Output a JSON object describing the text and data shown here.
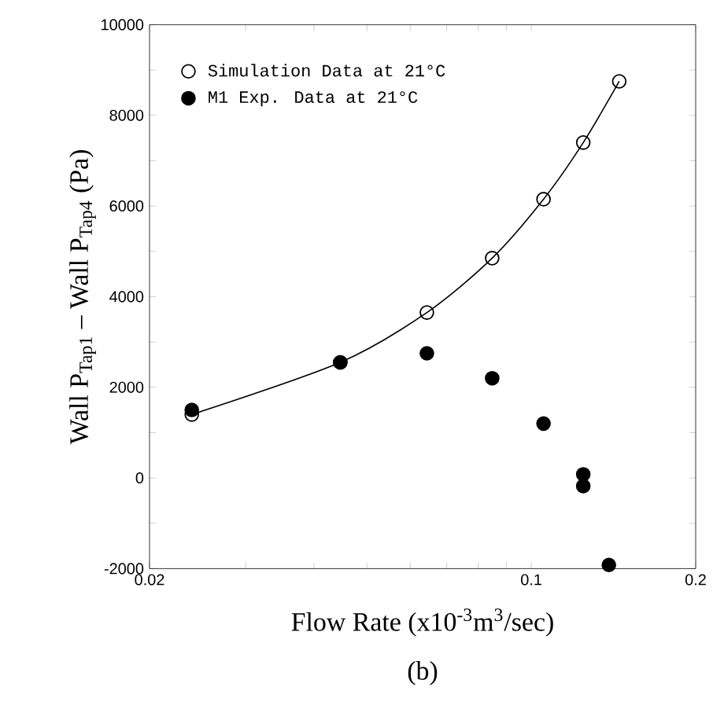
{
  "chart_data": {
    "type": "scatter",
    "xlabel": "Flow Rate (x10$^{-3}$m$^{3}$/sec)",
    "ylabel": "Wall P$_{Tap1}$ – Wall P$_{Tap4}$ (Pa)",
    "annotations": [
      "(b)"
    ],
    "log": "x",
    "xlim": [
      0.02,
      0.2
    ],
    "ylim": [
      -2000,
      10000
    ],
    "xticks": [
      0.02,
      {
        "value": 0.03,
        "label": null
      },
      {
        "value": 0.04,
        "label": null
      },
      {
        "value": 0.05,
        "label": null
      },
      {
        "value": 0.06,
        "label": null
      },
      {
        "value": 0.07,
        "label": null
      },
      {
        "value": 0.08,
        "label": null
      },
      {
        "value": 0.09,
        "label": null
      },
      0.1,
      0.2
    ],
    "yticks": [
      -2000,
      {
        "value": -1000,
        "label": null
      },
      0,
      {
        "value": 1000,
        "label": null
      },
      2000,
      {
        "value": 3000,
        "label": null
      },
      4000,
      {
        "value": 5000,
        "label": null
      },
      6000,
      {
        "value": 7000,
        "label": null
      },
      8000,
      {
        "value": 9000,
        "label": null
      },
      10000
    ],
    "legend": "top left",
    "series": [
      {
        "name": "Simulation Data at 21°C",
        "color": "#000000",
        "marker": "circle",
        "x": [
          0.0239,
          0.0447,
          0.0644,
          0.0848,
          0.1053,
          0.1245,
          0.1449
        ],
        "values": [
          1400,
          2550,
          3650,
          4850,
          6150,
          7400,
          8750
        ]
      },
      {
        "name": "M1 Exp. Data at 21°C",
        "color": "#000000",
        "marker": "circle",
        "x": [
          0.0239,
          0.0447,
          0.0644,
          0.0848,
          0.1053,
          0.1245,
          0.1245,
          0.1387
        ],
        "values": [
          1500,
          2550,
          2750,
          2200,
          1200,
          80,
          -180,
          -1920
        ]
      },
      {
        "type": "line",
        "color": "#000000",
        "line_style": "solid",
        "x": [
          0.0239,
          0.0447,
          0.0644,
          0.0848,
          0.1053,
          0.1245,
          0.1449
        ],
        "values": [
          1400,
          2550,
          3650,
          4850,
          6150,
          7400,
          8750
        ]
      }
    ]
  }
}
